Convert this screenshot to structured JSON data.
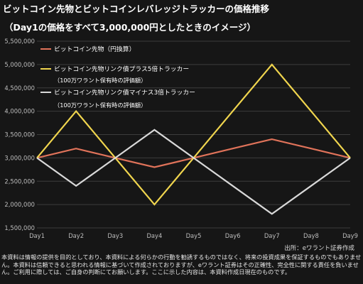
{
  "title_line1": "ビットコイン先物とビットコインレバレッジトラッカーの価格推移",
  "title_line2": "（Day1の価格をすべて3,000,000円としたときのイメージ）",
  "source": "出所：eワラント証券作成",
  "disclaimer": "本資料は情報の提供を目的としており、本資料による何らかの行動を勧誘するものではなく、将来の投資成果を保証するものでもありません。本資料は信頼できると思われる情報に基づいて作成されておりますが、eワラント証券はその正確性、完全性に関する責任を負いません。ご利用に際しては、ご自身の判断にてお願いします。ここに示した内容は、本資料作成日現在のものです。",
  "colors": {
    "background": "#161616",
    "grid": "#3c3c3c",
    "axis_text": "#bdbdbd"
  },
  "chart_data": {
    "type": "line",
    "categories": [
      "Day1",
      "Day2",
      "Day3",
      "Day4",
      "Day5",
      "Day6",
      "Day7",
      "Day8",
      "Day9"
    ],
    "ylim": [
      1500000,
      5500000
    ],
    "y_ticks": [
      "1,500,000",
      "2,000,000",
      "2,500,000",
      "3,000,000",
      "3,500,000",
      "4,000,000",
      "4,500,000",
      "5,000,000",
      "5,500,000"
    ],
    "grid": true,
    "legend_position": "top-left",
    "series": [
      {
        "name": "ビットコイン先物（円換算）",
        "color": "#e0735a",
        "values": [
          3000000,
          3200000,
          3000000,
          2800000,
          3000000,
          3200000,
          3400000,
          3200000,
          3000000
        ]
      },
      {
        "name": "ビットコイン先物リンク債プラス5倍トラッカー",
        "name_sub": "（100万ワラント保有時の評価額）",
        "color": "#f0d54e",
        "values": [
          3000000,
          4000000,
          3000000,
          2000000,
          3000000,
          4000000,
          5000000,
          4000000,
          3000000
        ]
      },
      {
        "name": "ビットコイン先物リンク債マイナス3倍トラッカー",
        "name_sub": "（100万ワラント保有時の評価額）",
        "color": "#d9d9d9",
        "values": [
          3000000,
          2400000,
          3000000,
          3600000,
          3000000,
          2400000,
          1800000,
          2400000,
          3000000
        ]
      }
    ]
  }
}
